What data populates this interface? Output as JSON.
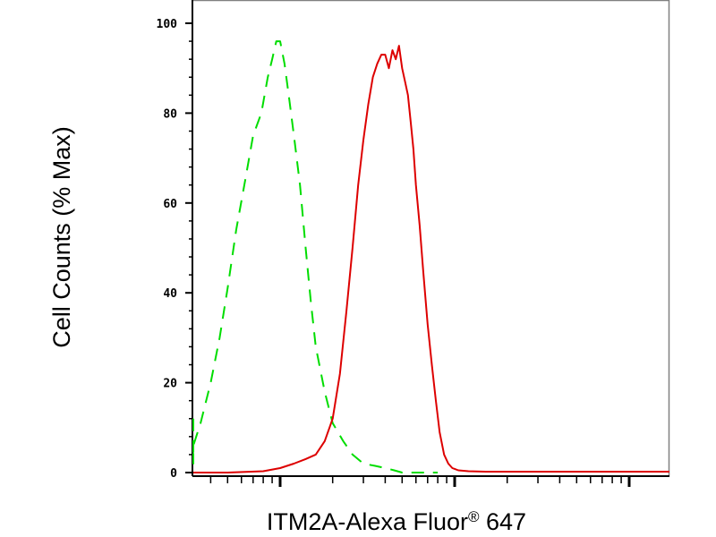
{
  "chart_data": {
    "type": "line",
    "title": "",
    "xlabel_main": "ITM2A-Alexa Fluor",
    "xlabel_reg": "®",
    "xlabel_tail": " 647",
    "ylabel": "Cell Counts (% Max)",
    "xscale": "log",
    "xlim": [
      0.18,
      1000
    ],
    "ylim": [
      0,
      105
    ],
    "x_major_ticks": [
      1,
      10,
      100
    ],
    "y_ticks": [
      0,
      20,
      40,
      60,
      80,
      100
    ],
    "y_tick_labels": [
      "0",
      "20",
      "40",
      "60",
      "80",
      "100"
    ],
    "grid": false,
    "legend": "none",
    "series": [
      {
        "color": "#00dd00",
        "dash": "dashed",
        "x": [
          0.18,
          0.2,
          0.22,
          0.25,
          0.3,
          0.35,
          0.4,
          0.45,
          0.5,
          0.56,
          0.63,
          0.7,
          0.78,
          0.85,
          0.9,
          0.95,
          1.0,
          1.06,
          1.12,
          1.2,
          1.3,
          1.4,
          1.5,
          1.6,
          1.8,
          2.0,
          2.3,
          2.6,
          3.0,
          3.5,
          4.0,
          4.5,
          5.0,
          5.6,
          6.3,
          7.0,
          8.0
        ],
        "y": [
          12,
          4,
          2,
          3,
          6,
          11,
          20,
          30,
          41,
          54,
          65,
          75,
          80,
          88,
          92,
          96,
          96,
          91,
          84,
          75,
          64,
          50,
          38,
          28,
          18,
          11,
          7,
          4,
          2,
          1.5,
          1,
          0.5,
          0,
          0,
          0,
          0,
          0
        ]
      },
      {
        "color": "#dd0000",
        "dash": "solid",
        "x": [
          0.18,
          0.5,
          0.8,
          1.0,
          1.2,
          1.4,
          1.6,
          1.8,
          2.0,
          2.2,
          2.4,
          2.6,
          2.8,
          3.0,
          3.2,
          3.4,
          3.6,
          3.8,
          4.0,
          4.2,
          4.4,
          4.6,
          4.8,
          5.0,
          5.2,
          5.4,
          5.6,
          5.8,
          6.0,
          6.3,
          6.6,
          7.0,
          7.4,
          7.8,
          8.2,
          8.7,
          9.2,
          9.7,
          10.5,
          12,
          15,
          20,
          40,
          100,
          1000
        ],
        "y": [
          0,
          0,
          0.3,
          1,
          2,
          3,
          4,
          7,
          12,
          22,
          36,
          50,
          64,
          74,
          82,
          88,
          91,
          93,
          93,
          90,
          94,
          92,
          95,
          90,
          87,
          84,
          78,
          72,
          64,
          55,
          45,
          33,
          24,
          16,
          9,
          4,
          2,
          1,
          0.5,
          0.3,
          0.2,
          0.2,
          0.2,
          0.2,
          0.2
        ]
      }
    ]
  }
}
